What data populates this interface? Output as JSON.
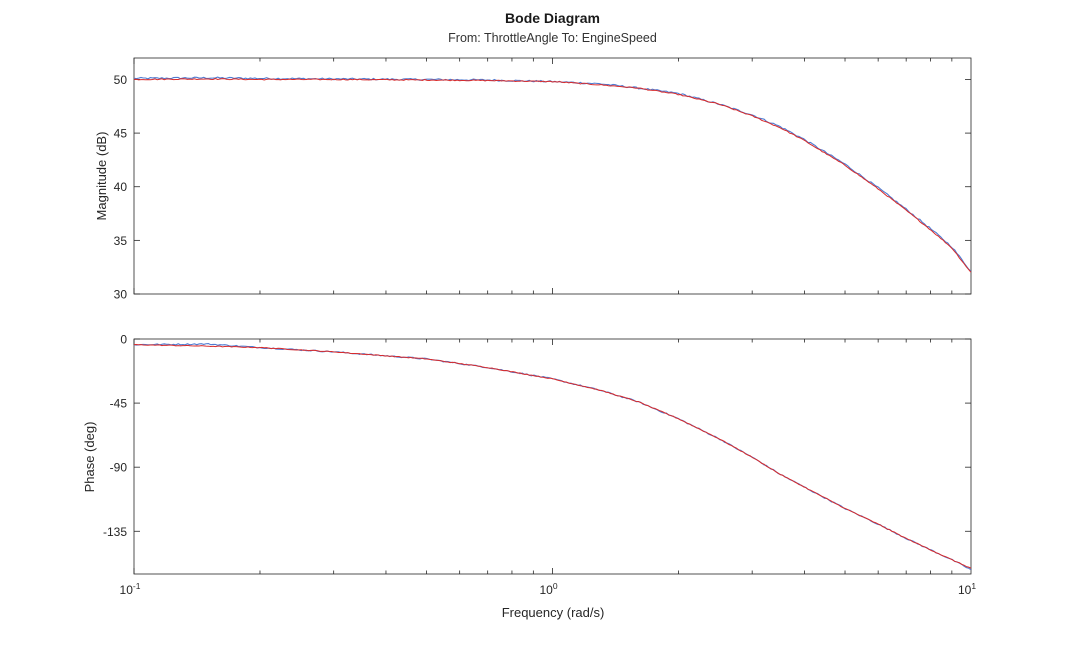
{
  "figure": {
    "title": "Bode Diagram",
    "subtitle": "From: ThrottleAngle  To: EngineSpeed"
  },
  "colors": {
    "series_raw": "#4f7bd1",
    "series_fit": "#d92b2b",
    "axis": "#262626",
    "background": "#ffffff"
  },
  "chart_data": [
    {
      "type": "line",
      "panel": "magnitude",
      "xscale": "log",
      "xlim": [
        0.1,
        10
      ],
      "ylim": [
        30,
        52
      ],
      "ylabel": "Magnitude (dB)",
      "yticks": [
        30,
        35,
        40,
        45,
        50
      ],
      "grid": false,
      "x": [
        0.1,
        0.15,
        0.2,
        0.3,
        0.5,
        0.7,
        1.0,
        1.3,
        1.6,
        2.0,
        2.5,
        3.0,
        3.5,
        4.0,
        5.0,
        6.0,
        7.0,
        8.0,
        9.0,
        10.0
      ],
      "series": [
        {
          "values": [
            50.1,
            50.15,
            50.1,
            50.05,
            50.0,
            49.95,
            49.8,
            49.6,
            49.2,
            48.7,
            47.7,
            46.7,
            45.6,
            44.4,
            42.1,
            39.9,
            37.9,
            36.1,
            34.4,
            32.1
          ]
        },
        {
          "values": [
            50.0,
            50.05,
            50.0,
            50.0,
            49.95,
            49.9,
            49.8,
            49.5,
            49.2,
            48.6,
            47.7,
            46.6,
            45.5,
            44.3,
            42.0,
            39.8,
            37.8,
            36.0,
            34.3,
            32.0
          ]
        }
      ]
    },
    {
      "type": "line",
      "panel": "phase",
      "xscale": "log",
      "xlim": [
        0.1,
        10
      ],
      "ylim": [
        -165,
        0
      ],
      "xlabel": "Frequency (rad/s)",
      "ylabel": "Phase (deg)",
      "yticks": [
        -135,
        -90,
        -45,
        0
      ],
      "xticks": [
        "10^-1",
        "10^0",
        "10^1"
      ],
      "grid": false,
      "x": [
        0.1,
        0.15,
        0.2,
        0.3,
        0.5,
        0.7,
        1.0,
        1.3,
        1.6,
        2.0,
        2.5,
        3.0,
        3.5,
        4.0,
        5.0,
        6.0,
        7.0,
        8.0,
        9.0,
        10.0
      ],
      "series": [
        {
          "values": [
            -4,
            -3.5,
            -6,
            -9,
            -14,
            -20,
            -28,
            -36,
            -44,
            -56,
            -70,
            -83,
            -95,
            -104,
            -119,
            -130,
            -140,
            -148,
            -155,
            -162
          ]
        },
        {
          "values": [
            -4,
            -5,
            -6,
            -9,
            -14,
            -20,
            -28,
            -36,
            -44,
            -56,
            -70,
            -83,
            -95,
            -104,
            -119,
            -130,
            -140,
            -148,
            -155,
            -161
          ]
        }
      ]
    }
  ]
}
